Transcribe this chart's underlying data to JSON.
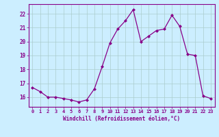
{
  "x": [
    0,
    1,
    2,
    3,
    4,
    5,
    6,
    7,
    8,
    9,
    10,
    11,
    12,
    13,
    14,
    15,
    16,
    17,
    18,
    19,
    20,
    21,
    22,
    23
  ],
  "y": [
    16.7,
    16.4,
    16.0,
    16.0,
    15.9,
    15.8,
    15.65,
    15.8,
    16.6,
    18.2,
    19.9,
    20.9,
    21.5,
    22.3,
    20.0,
    20.4,
    20.8,
    20.9,
    21.9,
    21.1,
    19.1,
    19.0,
    16.1,
    15.9
  ],
  "line_color": "#880088",
  "marker": "D",
  "markersize": 2.0,
  "bg_color": "#cceeff",
  "grid_color": "#aacccc",
  "xlabel": "Windchill (Refroidissement éolien,°C)",
  "yticks": [
    16,
    17,
    18,
    19,
    20,
    21,
    22
  ],
  "xticks": [
    0,
    1,
    2,
    3,
    4,
    5,
    6,
    7,
    8,
    9,
    10,
    11,
    12,
    13,
    14,
    15,
    16,
    17,
    18,
    19,
    20,
    21,
    22,
    23
  ],
  "ylim": [
    15.3,
    22.7
  ],
  "xlim": [
    -0.5,
    23.5
  ]
}
